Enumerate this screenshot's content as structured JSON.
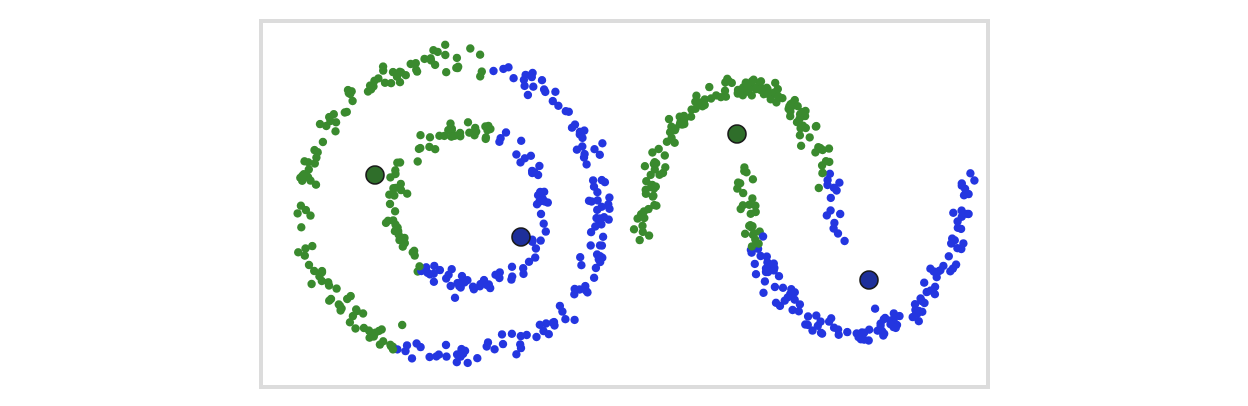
{
  "figure": {
    "background": "#ffffff",
    "frame_color": "#dcdcdc",
    "clusters": [
      {
        "id": "green",
        "color": "#3a8a2e",
        "centroid_color": "#2f6e2a"
      },
      {
        "id": "blue",
        "color": "#2436e0",
        "centroid_color": "#1e2f9a"
      }
    ],
    "panels": [
      {
        "id": "concentric-circles",
        "centroids": 2
      },
      {
        "id": "two-moons",
        "centroids": 2
      }
    ]
  }
}
